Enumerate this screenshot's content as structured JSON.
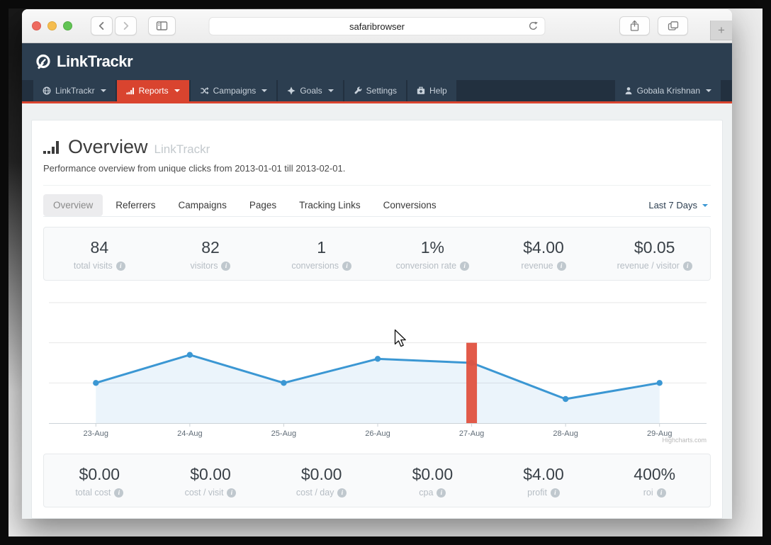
{
  "browser": {
    "url_text": "safaribrowser",
    "new_tab_label": "+"
  },
  "brand": {
    "name": "LinkTrackr"
  },
  "nav": {
    "items": [
      {
        "label": "LinkTrackr",
        "icon": "globe-icon",
        "has_caret": true,
        "active": false
      },
      {
        "label": "Reports",
        "icon": "bar-chart-icon",
        "has_caret": true,
        "active": true
      },
      {
        "label": "Campaigns",
        "icon": "shuffle-icon",
        "has_caret": true,
        "active": false
      },
      {
        "label": "Goals",
        "icon": "diamond-icon",
        "has_caret": true,
        "active": false
      },
      {
        "label": "Settings",
        "icon": "wrench-icon",
        "has_caret": false,
        "active": false
      },
      {
        "label": "Help",
        "icon": "medkit-icon",
        "has_caret": false,
        "active": false
      }
    ],
    "user": {
      "label": "Gobala Krishnan"
    }
  },
  "page": {
    "title": "Overview",
    "title_suffix": "LinkTrackr",
    "subtitle": "Performance overview from unique clicks from 2013-01-01 till 2013-02-01.",
    "tabs": [
      {
        "label": "Overview",
        "active": true
      },
      {
        "label": "Referrers",
        "active": false
      },
      {
        "label": "Campaigns",
        "active": false
      },
      {
        "label": "Pages",
        "active": false
      },
      {
        "label": "Tracking Links",
        "active": false
      },
      {
        "label": "Conversions",
        "active": false
      }
    ],
    "period": "Last 7 Days",
    "stats_top": [
      {
        "value": "84",
        "label": "total visits"
      },
      {
        "value": "82",
        "label": "visitors"
      },
      {
        "value": "1",
        "label": "conversions"
      },
      {
        "value": "1%",
        "label": "conversion rate"
      },
      {
        "value": "$4.00",
        "label": "revenue"
      },
      {
        "value": "$0.05",
        "label": "revenue / visitor"
      }
    ],
    "stats_bottom": [
      {
        "value": "$0.00",
        "label": "total cost"
      },
      {
        "value": "$0.00",
        "label": "cost / visit"
      },
      {
        "value": "$0.00",
        "label": "cost / day"
      },
      {
        "value": "$0.00",
        "label": "cpa"
      },
      {
        "value": "$4.00",
        "label": "profit"
      },
      {
        "value": "400%",
        "label": "roi"
      }
    ]
  },
  "chart_data": {
    "type": "line",
    "title": "",
    "x": [
      "23-Aug",
      "24-Aug",
      "25-Aug",
      "26-Aug",
      "27-Aug",
      "28-Aug",
      "29-Aug"
    ],
    "series": [
      {
        "name": "visits",
        "type": "area-line",
        "color": "#3b97d3",
        "fill": "rgba(59,151,211,0.10)",
        "values": [
          10,
          17,
          10,
          16,
          15,
          6,
          10
        ]
      },
      {
        "name": "highlight-column",
        "type": "column",
        "color": "#e0513f",
        "values": [
          null,
          null,
          null,
          null,
          20,
          null,
          null
        ]
      }
    ],
    "ylim": [
      0,
      30
    ],
    "grid_interval": 10,
    "yaxis_labels_visible": false,
    "grid": true,
    "legend_position": "none",
    "credit": "Highcharts.com"
  }
}
